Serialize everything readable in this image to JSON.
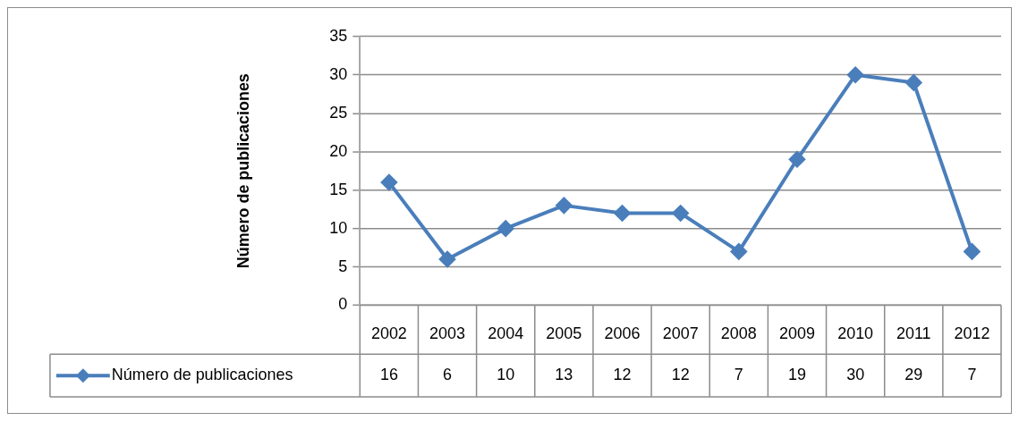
{
  "chart_data": {
    "type": "line",
    "ylabel": "Número de publicaciones",
    "categories": [
      "2002",
      "2003",
      "2004",
      "2005",
      "2006",
      "2007",
      "2008",
      "2009",
      "2010",
      "2011",
      "2012"
    ],
    "series": [
      {
        "name": "Número de publicaciones",
        "color": "#4a7ebb",
        "values": [
          16,
          6,
          10,
          13,
          12,
          12,
          7,
          19,
          30,
          29,
          7
        ]
      }
    ],
    "ylim": [
      0,
      35
    ],
    "yticks": [
      0,
      5,
      10,
      15,
      20,
      25,
      30,
      35
    ],
    "grid": "y",
    "legend": "bottom",
    "marker": "diamond",
    "line_style": "solid",
    "data_labels": true
  }
}
